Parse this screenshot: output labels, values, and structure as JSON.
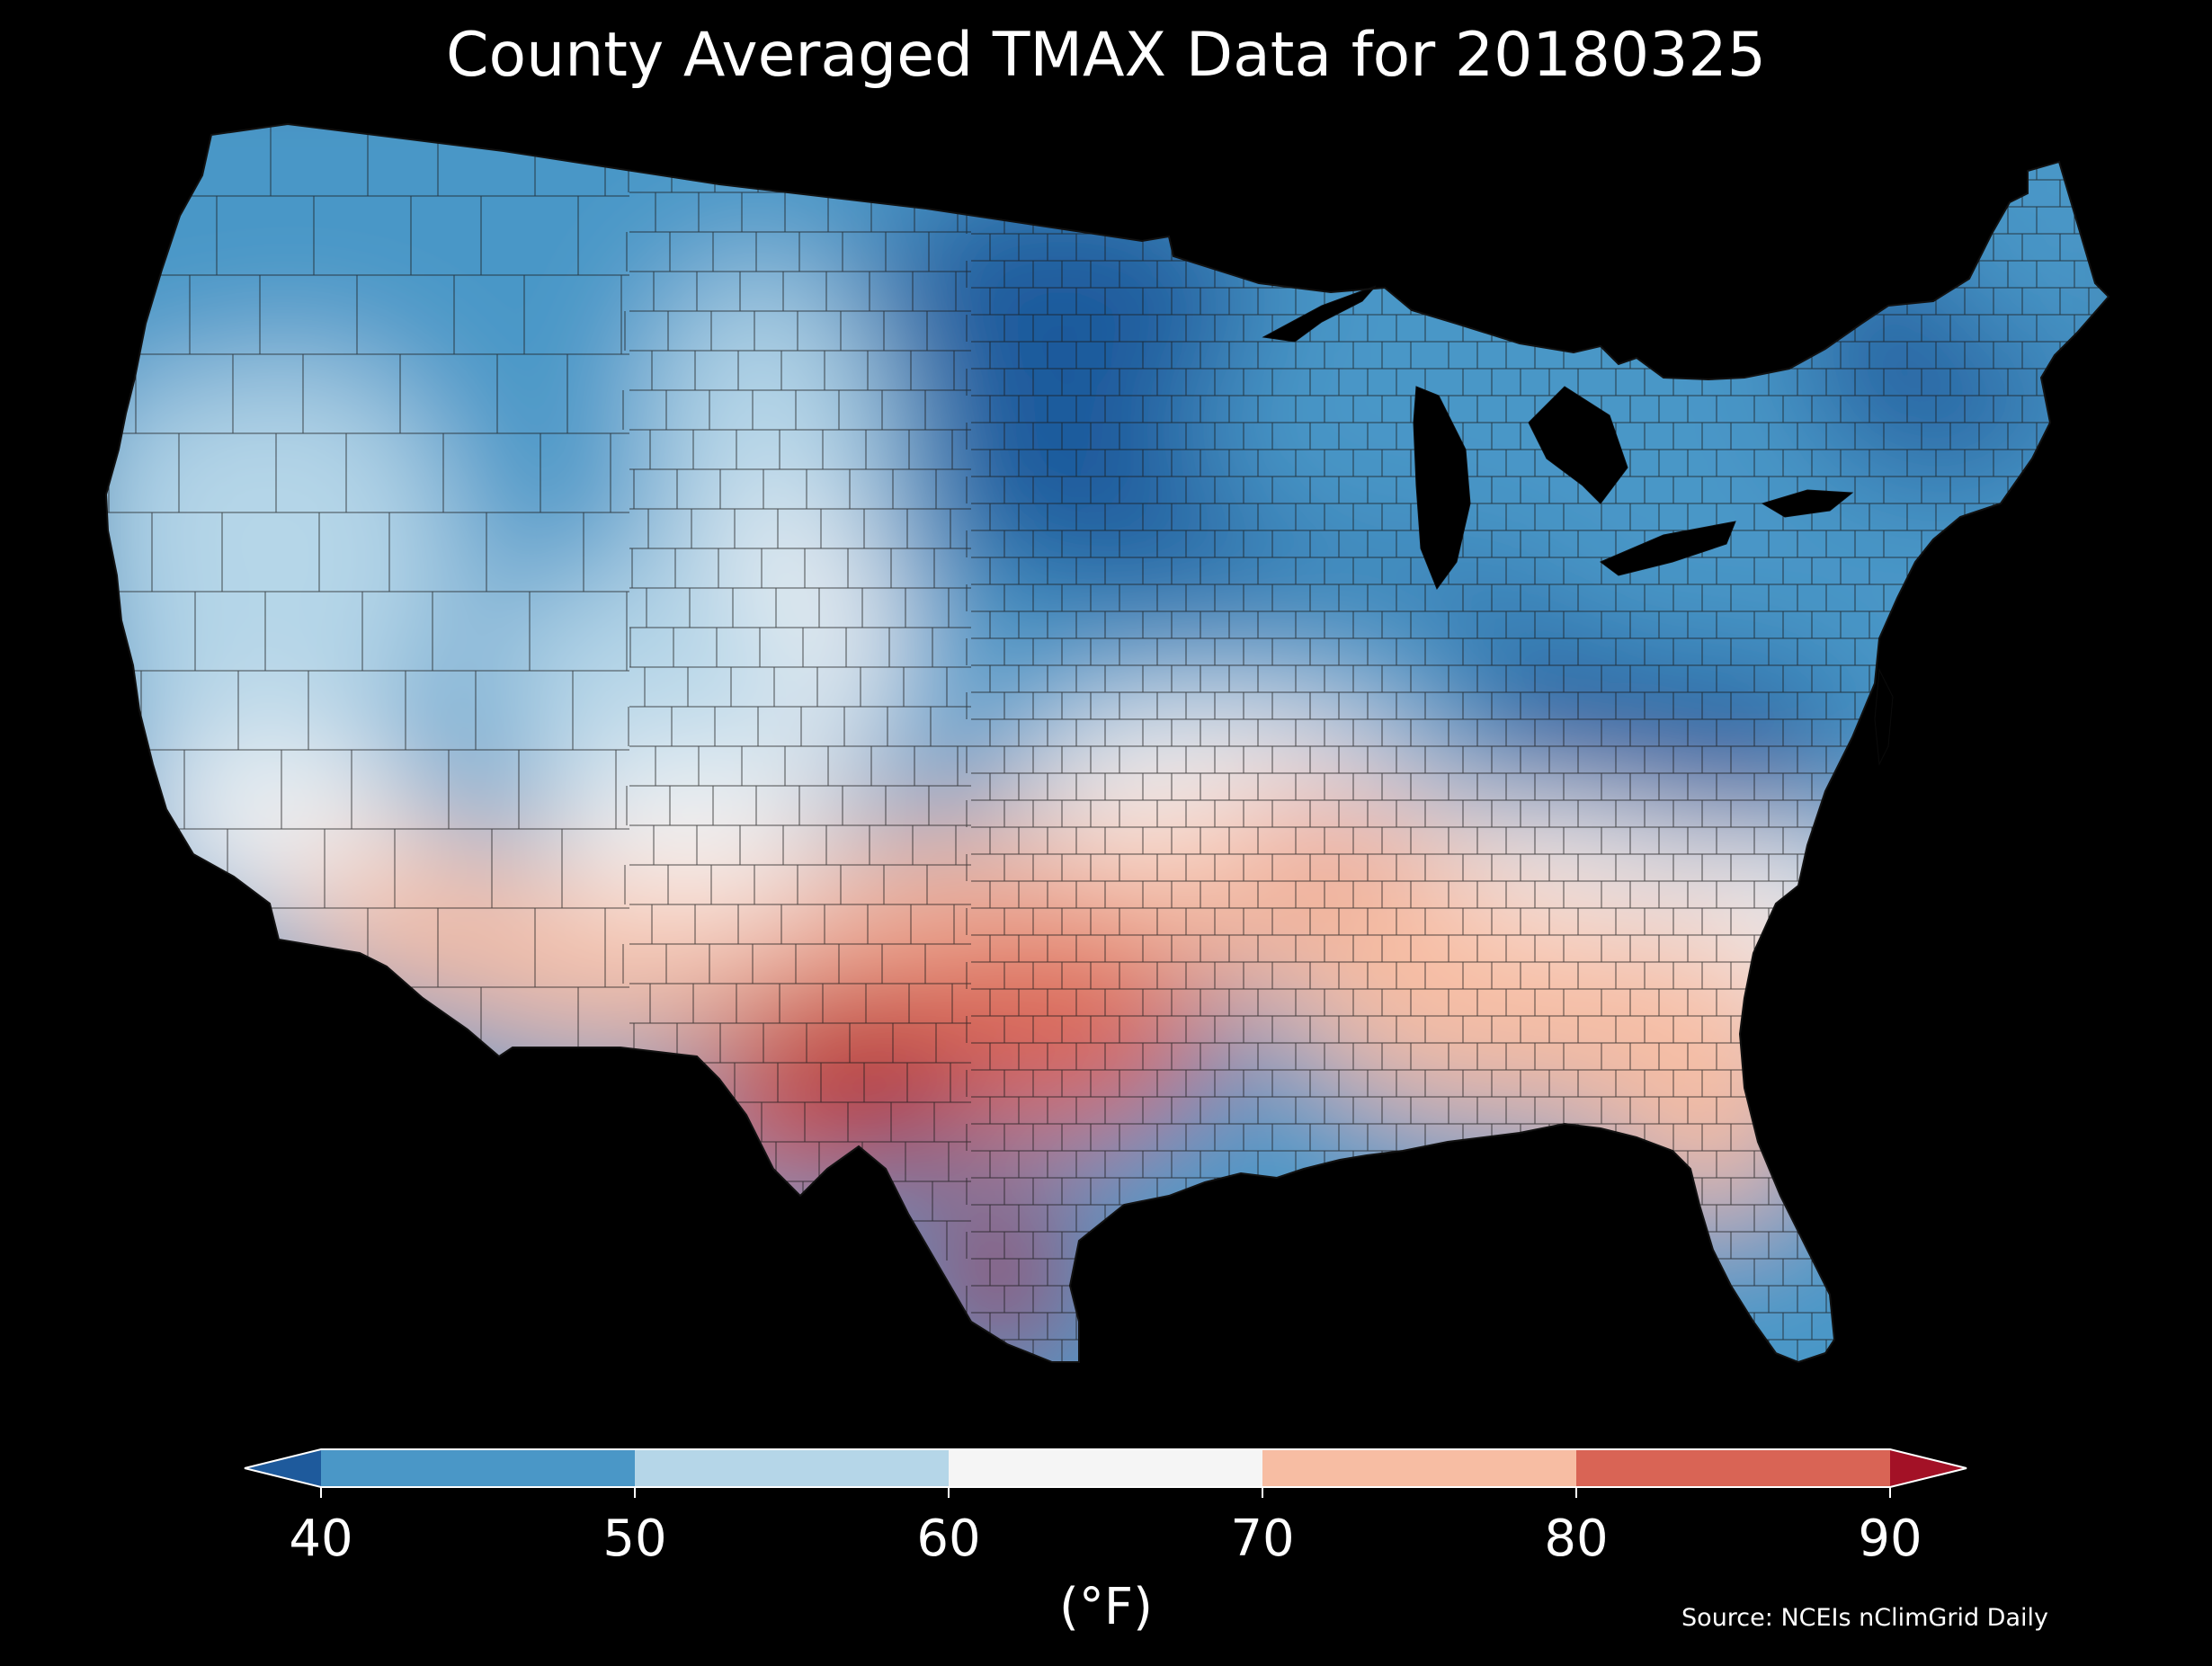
{
  "title": "County Averaged TMAX Data for 20180325",
  "colorbar": {
    "ticks": [
      "40",
      "50",
      "60",
      "70",
      "80",
      "90"
    ],
    "unit": "(°F)",
    "bins": [
      {
        "range": "<40",
        "color": "#1e5a9c"
      },
      {
        "range": "40-50",
        "color": "#4a97c7"
      },
      {
        "range": "50-60",
        "color": "#b5d6e8"
      },
      {
        "range": "60-70",
        "color": "#f5f5f5"
      },
      {
        "range": "70-80",
        "color": "#f7bda3"
      },
      {
        "range": "80-90",
        "color": "#d96455"
      },
      {
        "range": ">90",
        "color": "#a31126"
      }
    ]
  },
  "source": "Source: NCEIs nClimGrid Daily",
  "colors": {
    "background": "#000000",
    "text": "#ffffff",
    "county_border": "#1a1a1a"
  }
}
